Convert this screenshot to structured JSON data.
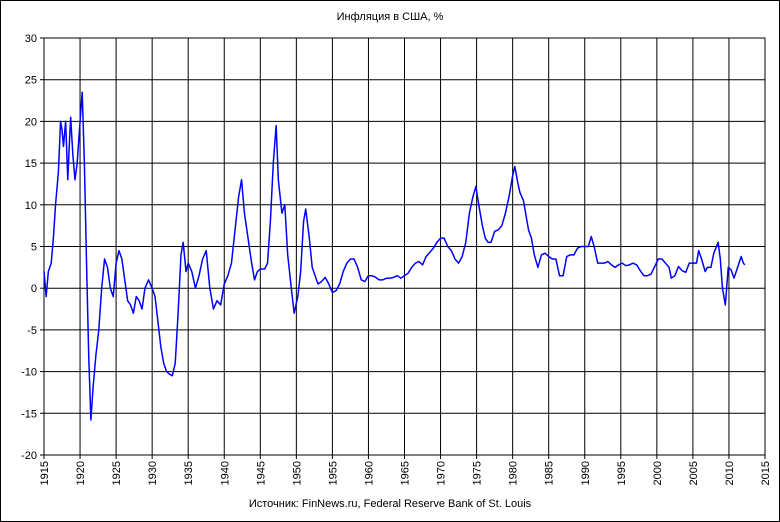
{
  "chart_data": {
    "type": "line",
    "title": "Инфляция в США, %",
    "source": "Источник: FinNews.ru, Federal Reserve Bank of St. Louis",
    "color": "#0000ff",
    "negative_tick_color": "#ff0000",
    "grid": true,
    "xlim": [
      1915,
      2015
    ],
    "ylim": [
      -20,
      30
    ],
    "xticks": [
      1915,
      1920,
      1925,
      1930,
      1935,
      1940,
      1945,
      1950,
      1955,
      1960,
      1965,
      1970,
      1975,
      1980,
      1985,
      1990,
      1995,
      2000,
      2005,
      2010,
      2015
    ],
    "yticks": [
      -20,
      -15,
      -10,
      -5,
      0,
      5,
      10,
      15,
      20,
      25,
      30
    ],
    "x": [
      1915.0,
      1915.3,
      1915.6,
      1916.0,
      1916.3,
      1916.6,
      1917.0,
      1917.3,
      1917.5,
      1917.7,
      1918.0,
      1918.3,
      1918.5,
      1918.7,
      1919.0,
      1919.3,
      1919.6,
      1920.0,
      1920.3,
      1920.6,
      1920.9,
      1921.2,
      1921.5,
      1921.8,
      1922.2,
      1922.6,
      1923.0,
      1923.4,
      1923.8,
      1924.2,
      1924.6,
      1925.0,
      1925.4,
      1925.8,
      1926.2,
      1926.6,
      1927.0,
      1927.4,
      1927.8,
      1928.2,
      1928.6,
      1929.0,
      1929.5,
      1930.0,
      1930.4,
      1930.8,
      1931.2,
      1931.6,
      1932.0,
      1932.4,
      1932.8,
      1933.2,
      1933.6,
      1934.0,
      1934.3,
      1934.7,
      1935.0,
      1935.5,
      1936.0,
      1936.5,
      1937.0,
      1937.5,
      1938.0,
      1938.5,
      1939.0,
      1939.5,
      1940.0,
      1940.5,
      1941.0,
      1941.5,
      1942.0,
      1942.4,
      1942.8,
      1943.3,
      1943.8,
      1944.2,
      1944.6,
      1945.0,
      1945.6,
      1946.0,
      1946.4,
      1946.8,
      1947.2,
      1947.5,
      1948.0,
      1948.4,
      1948.8,
      1949.3,
      1949.7,
      1950.2,
      1950.6,
      1951.0,
      1951.3,
      1951.8,
      1952.2,
      1952.6,
      1953.0,
      1953.5,
      1954.0,
      1954.5,
      1955.0,
      1955.5,
      1956.0,
      1956.5,
      1957.0,
      1957.5,
      1958.0,
      1958.5,
      1959.0,
      1959.5,
      1960.0,
      1960.5,
      1961.0,
      1961.5,
      1962.0,
      1962.5,
      1963.0,
      1963.5,
      1964.0,
      1964.5,
      1965.0,
      1965.5,
      1966.0,
      1966.5,
      1967.0,
      1967.5,
      1968.0,
      1968.5,
      1969.0,
      1969.5,
      1970.0,
      1970.5,
      1971.0,
      1971.5,
      1972.0,
      1972.5,
      1973.0,
      1973.5,
      1974.0,
      1974.5,
      1974.9,
      1975.3,
      1975.8,
      1976.2,
      1976.6,
      1977.0,
      1977.5,
      1978.0,
      1978.5,
      1979.0,
      1979.5,
      1980.0,
      1980.3,
      1980.7,
      1981.0,
      1981.5,
      1981.8,
      1982.2,
      1982.6,
      1983.0,
      1983.5,
      1984.0,
      1984.5,
      1985.0,
      1985.5,
      1986.0,
      1986.5,
      1987.0,
      1987.5,
      1988.0,
      1988.5,
      1989.0,
      1989.5,
      1990.0,
      1990.5,
      1990.9,
      1991.3,
      1991.8,
      1992.2,
      1992.7,
      1993.2,
      1993.7,
      1994.2,
      1994.7,
      1995.2,
      1995.7,
      1996.2,
      1996.7,
      1997.2,
      1997.7,
      1998.2,
      1998.7,
      1999.2,
      1999.7,
      2000.2,
      2000.7,
      2001.2,
      2001.7,
      2002.0,
      2002.5,
      2003.0,
      2003.5,
      2004.0,
      2004.5,
      2005.0,
      2005.5,
      2005.8,
      2006.2,
      2006.7,
      2007.0,
      2007.5,
      2007.9,
      2008.5,
      2008.8,
      2009.1,
      2009.5,
      2009.9,
      2010.3,
      2010.7,
      2011.2,
      2011.7,
      2012.0,
      2012.2
    ],
    "values": [
      2,
      -1,
      2,
      3,
      6,
      10,
      14,
      20,
      19,
      17,
      20,
      13,
      17,
      20.5,
      16,
      13,
      15,
      20,
      23.5,
      15,
      3,
      -8,
      -15.8,
      -12,
      -8,
      -5,
      0,
      3.5,
      2.5,
      0,
      -1,
      3,
      4.5,
      3.5,
      1,
      -1.5,
      -2,
      -3,
      -1,
      -1.5,
      -2.5,
      0,
      1,
      0,
      -1,
      -4,
      -7,
      -9,
      -10,
      -10.3,
      -10.5,
      -9,
      -3,
      4,
      5.5,
      2,
      3,
      2,
      0,
      1.5,
      3.5,
      4.5,
      0,
      -2.5,
      -1.5,
      -2,
      0.5,
      1.5,
      3,
      7,
      11,
      13,
      9,
      6,
      3,
      1,
      2,
      2.3,
      2.3,
      3,
      8,
      15,
      19.5,
      13,
      9,
      10,
      4,
      0,
      -3,
      -1,
      2,
      8,
      9.5,
      6,
      2.5,
      1.5,
      0.5,
      0.8,
      1.3,
      0.5,
      -0.5,
      -0.3,
      0.5,
      2,
      3,
      3.5,
      3.5,
      2.5,
      1,
      0.8,
      1.5,
      1.5,
      1.3,
      1,
      1,
      1.2,
      1.2,
      1.3,
      1.5,
      1.2,
      1.5,
      1.8,
      2.5,
      3,
      3.2,
      2.8,
      3.8,
      4.3,
      4.8,
      5.5,
      6,
      6,
      5,
      4.5,
      3.5,
      3,
      3.8,
      5.5,
      9,
      11,
      12.2,
      10,
      7.5,
      6,
      5.5,
      5.5,
      6.8,
      7,
      7.5,
      9,
      11,
      13.5,
      14.6,
      12.7,
      11.5,
      10.5,
      9,
      7,
      6,
      4,
      2.5,
      4,
      4.2,
      3.8,
      3.5,
      3.5,
      1.5,
      1.5,
      3.8,
      4,
      4,
      4.8,
      5,
      5,
      5,
      6.2,
      5,
      3,
      3,
      3,
      3.2,
      2.8,
      2.5,
      2.8,
      3,
      2.7,
      2.8,
      3,
      2.8,
      2.1,
      1.5,
      1.5,
      1.7,
      2.6,
      3.5,
      3.5,
      3,
      2.5,
      1.2,
      1.5,
      2.6,
      2.1,
      1.9,
      3,
      3,
      3,
      4.5,
      3.5,
      2,
      2.5,
      2.5,
      4.2,
      5.5,
      3.5,
      0,
      -2,
      2.5,
      2.2,
      1.2,
      2.5,
      3.8,
      3.0,
      2.8
    ]
  }
}
